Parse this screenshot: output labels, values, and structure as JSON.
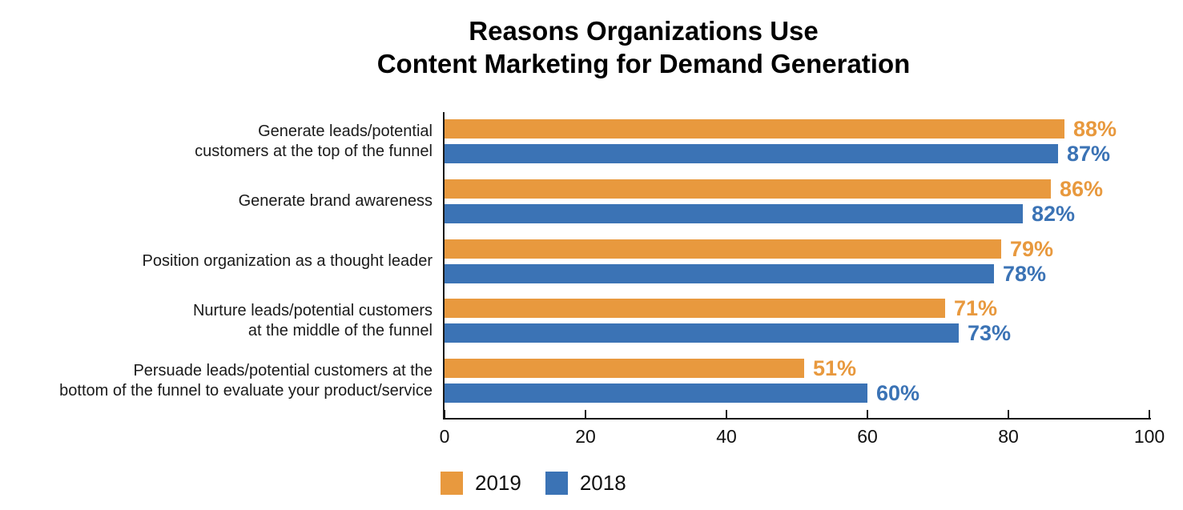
{
  "title": {
    "line1": "Reasons Organizations Use",
    "line2": "Content Marketing for Demand Generation"
  },
  "chart_data": {
    "type": "bar",
    "orientation": "horizontal",
    "title": "Reasons Organizations Use Content Marketing for Demand Generation",
    "categories": [
      [
        "Generate leads/potential",
        "customers at the top of the funnel"
      ],
      [
        "Generate brand awareness"
      ],
      [
        "Position organization as a thought leader"
      ],
      [
        "Nurture leads/potential customers",
        "at the middle of the funnel"
      ],
      [
        "Persuade leads/potential customers at the",
        "bottom of the funnel to evaluate your product/service"
      ]
    ],
    "series": [
      {
        "name": "2019",
        "color": "#E8993E",
        "values": [
          88,
          86,
          79,
          71,
          51
        ]
      },
      {
        "name": "2018",
        "color": "#3B73B5",
        "values": [
          87,
          82,
          78,
          73,
          60
        ]
      }
    ],
    "value_suffix": "%",
    "xlim": [
      0,
      100
    ],
    "x_ticks": [
      0,
      20,
      40,
      60,
      80,
      100
    ],
    "grid": false,
    "legend_position": "bottom-left",
    "colors": {
      "series_2019": "#E8993E",
      "series_2018": "#3B73B5",
      "axis": "#1a1a1a",
      "text": "#111111"
    }
  }
}
